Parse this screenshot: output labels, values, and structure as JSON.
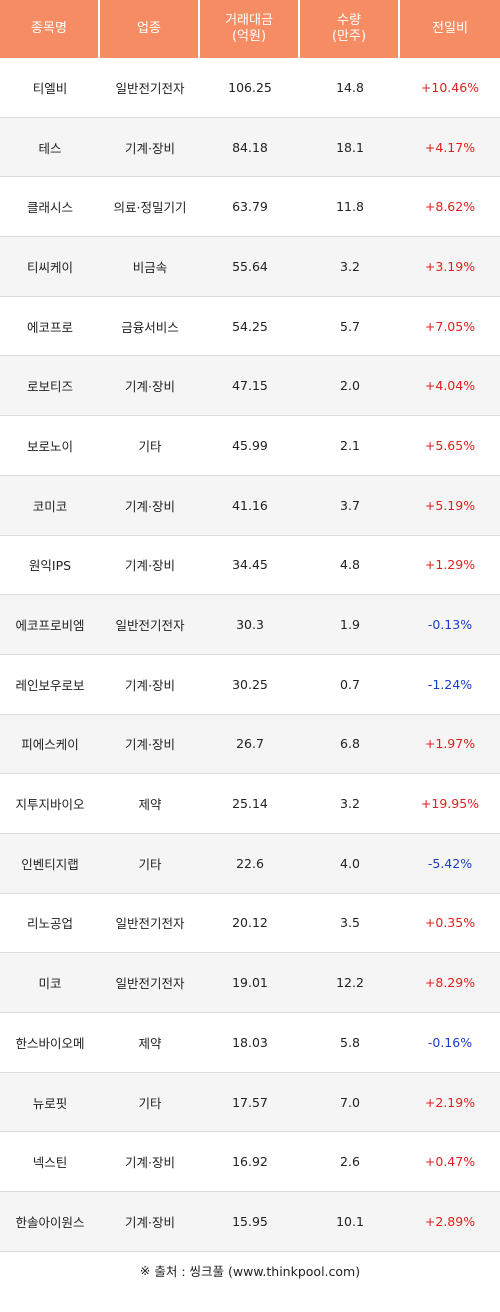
{
  "header": {
    "col_name": "종목명",
    "col_sector": "업종",
    "col_amount": "거래대금\n(억원)",
    "col_amount_l1": "거래대금",
    "col_amount_l2": "(억원)",
    "col_volume_l1": "수량",
    "col_volume_l2": "(만주)",
    "col_change": "전일비"
  },
  "colors": {
    "header_bg": "#f58c64",
    "up": "#e02020",
    "down": "#1a3cc8"
  },
  "rows": [
    {
      "name": "티엘비",
      "sector": "일반전기전자",
      "amount": "106.25",
      "volume": "14.8",
      "change": "+10.46%"
    },
    {
      "name": "테스",
      "sector": "기계·장비",
      "amount": "84.18",
      "volume": "18.1",
      "change": "+4.17%"
    },
    {
      "name": "클래시스",
      "sector": "의료·정밀기기",
      "amount": "63.79",
      "volume": "11.8",
      "change": "+8.62%"
    },
    {
      "name": "티씨케이",
      "sector": "비금속",
      "amount": "55.64",
      "volume": "3.2",
      "change": "+3.19%"
    },
    {
      "name": "에코프로",
      "sector": "금융서비스",
      "amount": "54.25",
      "volume": "5.7",
      "change": "+7.05%"
    },
    {
      "name": "로보티즈",
      "sector": "기계·장비",
      "amount": "47.15",
      "volume": "2.0",
      "change": "+4.04%"
    },
    {
      "name": "보로노이",
      "sector": "기타",
      "amount": "45.99",
      "volume": "2.1",
      "change": "+5.65%"
    },
    {
      "name": "코미코",
      "sector": "기계·장비",
      "amount": "41.16",
      "volume": "3.7",
      "change": "+5.19%"
    },
    {
      "name": "원익IPS",
      "sector": "기계·장비",
      "amount": "34.45",
      "volume": "4.8",
      "change": "+1.29%"
    },
    {
      "name": "에코프로비엠",
      "sector": "일반전기전자",
      "amount": "30.3",
      "volume": "1.9",
      "change": "-0.13%"
    },
    {
      "name": "레인보우로보",
      "sector": "기계·장비",
      "amount": "30.25",
      "volume": "0.7",
      "change": "-1.24%"
    },
    {
      "name": "피에스케이",
      "sector": "기계·장비",
      "amount": "26.7",
      "volume": "6.8",
      "change": "+1.97%"
    },
    {
      "name": "지투지바이오",
      "sector": "제약",
      "amount": "25.14",
      "volume": "3.2",
      "change": "+19.95%"
    },
    {
      "name": "인벤티지랩",
      "sector": "기타",
      "amount": "22.6",
      "volume": "4.0",
      "change": "-5.42%"
    },
    {
      "name": "리노공업",
      "sector": "일반전기전자",
      "amount": "20.12",
      "volume": "3.5",
      "change": "+0.35%"
    },
    {
      "name": "미코",
      "sector": "일반전기전자",
      "amount": "19.01",
      "volume": "12.2",
      "change": "+8.29%"
    },
    {
      "name": "한스바이오메",
      "sector": "제약",
      "amount": "18.03",
      "volume": "5.8",
      "change": "-0.16%"
    },
    {
      "name": "뉴로핏",
      "sector": "기타",
      "amount": "17.57",
      "volume": "7.0",
      "change": "+2.19%"
    },
    {
      "name": "넥스틴",
      "sector": "기계·장비",
      "amount": "16.92",
      "volume": "2.6",
      "change": "+0.47%"
    },
    {
      "name": "한솔아이원스",
      "sector": "기계·장비",
      "amount": "15.95",
      "volume": "10.1",
      "change": "+2.89%"
    }
  ],
  "footer": {
    "mark": "※",
    "source": "출처 : 씽크풀 (www.thinkpool.com)"
  }
}
